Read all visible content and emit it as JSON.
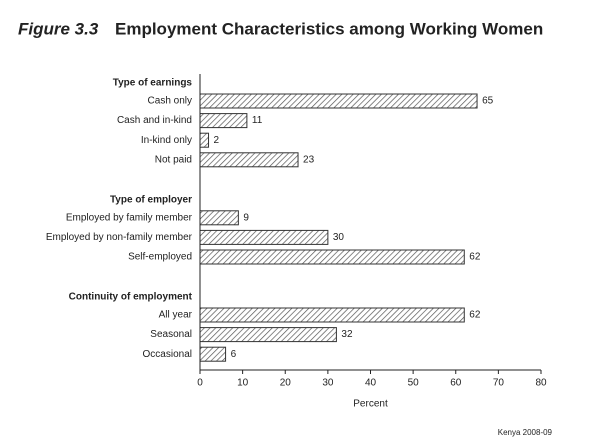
{
  "chart_data": {
    "type": "grouped-hbar",
    "figure_label": "Figure 3.3",
    "title": "Employment Characteristics among Working Women",
    "groups": [
      {
        "name": "Type of earnings",
        "categories": [
          "Cash only",
          "Cash and in-kind",
          "In-kind only",
          "Not paid"
        ],
        "values": [
          65,
          11,
          2,
          23
        ]
      },
      {
        "name": "Type of employer",
        "categories": [
          "Employed by family member",
          "Employed by non-family member",
          "Self-employed"
        ],
        "values": [
          9,
          30,
          62
        ]
      },
      {
        "name": "Continuity of employment",
        "categories": [
          "All year",
          "Seasonal",
          "Occasional"
        ],
        "values": [
          62,
          32,
          6
        ]
      }
    ],
    "xlim": [
      0,
      80
    ],
    "xticks": [
      0,
      10,
      20,
      30,
      40,
      50,
      60,
      70,
      80
    ],
    "xlabel": "Percent",
    "source": "Kenya 2008-09",
    "color": "#333333"
  }
}
